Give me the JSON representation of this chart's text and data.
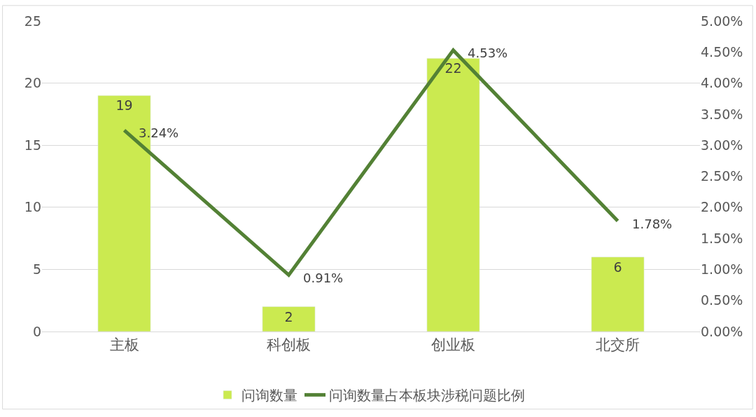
{
  "chart_data": {
    "type": "bar",
    "categories": [
      "主板",
      "科创板",
      "创业板",
      "北交所"
    ],
    "series": [
      {
        "name": "问询数量",
        "color": "#cbea50",
        "values": [
          19,
          2,
          22,
          6
        ],
        "value_labels": [
          "19",
          "2",
          "22",
          "6"
        ]
      },
      {
        "name": "问询数量占本板块涉税问题比例",
        "type": "line",
        "axis": "y2",
        "color": "#538135",
        "values": [
          3.24,
          0.91,
          4.53,
          1.78
        ],
        "value_labels": [
          "3.24%",
          "0.91%",
          "4.53%",
          "1.78%"
        ]
      }
    ],
    "ylim": [
      0,
      25
    ],
    "yticks": [
      0,
      5,
      10,
      15,
      20,
      25
    ],
    "y2lim": [
      0,
      5
    ],
    "y2ticks": [
      {
        "value": 0,
        "label": "0.00%"
      },
      {
        "value": 0.5,
        "label": "0.50%"
      },
      {
        "value": 1,
        "label": "1.00%"
      },
      {
        "value": 1.5,
        "label": "1.50%"
      },
      {
        "value": 2,
        "label": "2.00%"
      },
      {
        "value": 2.5,
        "label": "2.50%"
      },
      {
        "value": 3,
        "label": "3.00%"
      },
      {
        "value": 3.5,
        "label": "3.50%"
      },
      {
        "value": 4,
        "label": "4.00%"
      },
      {
        "value": 4.5,
        "label": "4.50%"
      },
      {
        "value": 5,
        "label": "5.00%"
      }
    ],
    "grid": "y",
    "legend": "bottom",
    "marker": "none",
    "line_style": "solid"
  }
}
